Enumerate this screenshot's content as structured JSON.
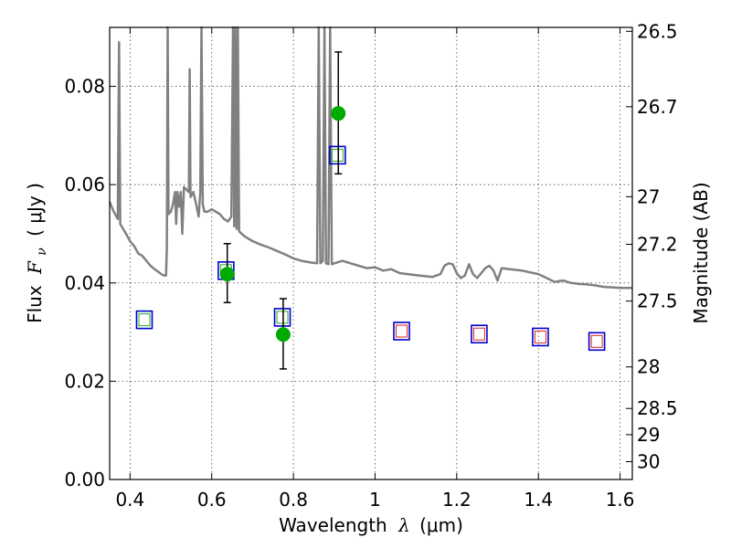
{
  "chart_data": {
    "type": "scatter",
    "xlabel_text": "Wavelength",
    "xlabel_symbol": "λ",
    "xlabel_unit": "(μm)",
    "ylabel_text": "Flux",
    "ylabel_symbol": "F",
    "ylabel_sub": "ν",
    "ylabel_unit": "( μJy )",
    "y2label": "Magnitude (AB)",
    "xlim": [
      0.35,
      1.63
    ],
    "ylim": [
      0.0,
      0.092
    ],
    "grid": true,
    "x_ticks": [
      {
        "value": 0.4,
        "label": "0.4"
      },
      {
        "value": 0.6,
        "label": "0.6"
      },
      {
        "value": 0.8,
        "label": "0.8"
      },
      {
        "value": 1.0,
        "label": "1"
      },
      {
        "value": 1.2,
        "label": "1.2"
      },
      {
        "value": 1.4,
        "label": "1.4"
      },
      {
        "value": 1.6,
        "label": "1.6"
      }
    ],
    "y_ticks": [
      {
        "value": 0.0,
        "label": "0.00"
      },
      {
        "value": 0.02,
        "label": "0.02"
      },
      {
        "value": 0.04,
        "label": "0.04"
      },
      {
        "value": 0.06,
        "label": "0.06"
      },
      {
        "value": 0.08,
        "label": "0.08"
      }
    ],
    "mag_ticks": [
      {
        "mag": 26.5,
        "label": "26.5"
      },
      {
        "mag": 26.7,
        "label": "26.7"
      },
      {
        "mag": 27.0,
        "label": "27"
      },
      {
        "mag": 27.2,
        "label": "27.2"
      },
      {
        "mag": 27.5,
        "label": "27.5"
      },
      {
        "mag": 28.0,
        "label": "28"
      },
      {
        "mag": 28.5,
        "label": "28.5"
      },
      {
        "mag": 29.0,
        "label": "29"
      },
      {
        "mag": 30.0,
        "label": "30"
      }
    ],
    "model_spectrum": {
      "color": "#808080",
      "points": [
        [
          0.35,
          0.0565
        ],
        [
          0.36,
          0.0545
        ],
        [
          0.37,
          0.053
        ],
        [
          0.373,
          0.089
        ],
        [
          0.376,
          0.052
        ],
        [
          0.39,
          0.05
        ],
        [
          0.4,
          0.0485
        ],
        [
          0.41,
          0.0475
        ],
        [
          0.42,
          0.046
        ],
        [
          0.43,
          0.0455
        ],
        [
          0.44,
          0.0445
        ],
        [
          0.45,
          0.0435
        ],
        [
          0.46,
          0.0428
        ],
        [
          0.47,
          0.0422
        ],
        [
          0.48,
          0.0416
        ],
        [
          0.488,
          0.0415
        ],
        [
          0.49,
          0.047
        ],
        [
          0.492,
          0.092
        ],
        [
          0.494,
          0.054
        ],
        [
          0.5,
          0.0545
        ],
        [
          0.505,
          0.056
        ],
        [
          0.51,
          0.0585
        ],
        [
          0.513,
          0.052
        ],
        [
          0.516,
          0.0585
        ],
        [
          0.52,
          0.0555
        ],
        [
          0.524,
          0.0585
        ],
        [
          0.528,
          0.05
        ],
        [
          0.532,
          0.0595
        ],
        [
          0.538,
          0.059
        ],
        [
          0.544,
          0.0585
        ],
        [
          0.546,
          0.0835
        ],
        [
          0.548,
          0.0575
        ],
        [
          0.555,
          0.0585
        ],
        [
          0.562,
          0.056
        ],
        [
          0.568,
          0.0535
        ],
        [
          0.572,
          0.0585
        ],
        [
          0.575,
          0.092
        ],
        [
          0.578,
          0.056
        ],
        [
          0.582,
          0.0545
        ],
        [
          0.59,
          0.0545
        ],
        [
          0.6,
          0.055
        ],
        [
          0.61,
          0.0545
        ],
        [
          0.62,
          0.054
        ],
        [
          0.63,
          0.053
        ],
        [
          0.64,
          0.0525
        ],
        [
          0.648,
          0.0535
        ],
        [
          0.652,
          0.092
        ],
        [
          0.655,
          0.0515
        ],
        [
          0.658,
          0.092
        ],
        [
          0.661,
          0.051
        ],
        [
          0.664,
          0.092
        ],
        [
          0.667,
          0.0505
        ],
        [
          0.68,
          0.0495
        ],
        [
          0.7,
          0.0485
        ],
        [
          0.72,
          0.0478
        ],
        [
          0.74,
          0.0472
        ],
        [
          0.76,
          0.0465
        ],
        [
          0.78,
          0.0458
        ],
        [
          0.8,
          0.045
        ],
        [
          0.82,
          0.0445
        ],
        [
          0.84,
          0.0442
        ],
        [
          0.858,
          0.044
        ],
        [
          0.862,
          0.092
        ],
        [
          0.866,
          0.044
        ],
        [
          0.872,
          0.0445
        ],
        [
          0.876,
          0.092
        ],
        [
          0.88,
          0.044
        ],
        [
          0.886,
          0.0438
        ],
        [
          0.89,
          0.092
        ],
        [
          0.894,
          0.0438
        ],
        [
          0.9,
          0.044
        ],
        [
          0.92,
          0.0445
        ],
        [
          0.94,
          0.044
        ],
        [
          0.96,
          0.0435
        ],
        [
          0.98,
          0.043
        ],
        [
          1.0,
          0.0432
        ],
        [
          1.02,
          0.0425
        ],
        [
          1.04,
          0.0428
        ],
        [
          1.06,
          0.042
        ],
        [
          1.08,
          0.0418
        ],
        [
          1.1,
          0.0416
        ],
        [
          1.12,
          0.0414
        ],
        [
          1.14,
          0.0412
        ],
        [
          1.16,
          0.0418
        ],
        [
          1.17,
          0.0435
        ],
        [
          1.18,
          0.044
        ],
        [
          1.19,
          0.0438
        ],
        [
          1.2,
          0.042
        ],
        [
          1.21,
          0.041
        ],
        [
          1.22,
          0.0415
        ],
        [
          1.23,
          0.0438
        ],
        [
          1.24,
          0.0418
        ],
        [
          1.25,
          0.041
        ],
        [
          1.26,
          0.042
        ],
        [
          1.27,
          0.043
        ],
        [
          1.28,
          0.0435
        ],
        [
          1.29,
          0.0425
        ],
        [
          1.3,
          0.0405
        ],
        [
          1.31,
          0.043
        ],
        [
          1.33,
          0.0428
        ],
        [
          1.36,
          0.0425
        ],
        [
          1.4,
          0.0418
        ],
        [
          1.42,
          0.041
        ],
        [
          1.44,
          0.0402
        ],
        [
          1.46,
          0.0405
        ],
        [
          1.48,
          0.04
        ],
        [
          1.5,
          0.0398
        ],
        [
          1.52,
          0.0397
        ],
        [
          1.54,
          0.0395
        ],
        [
          1.56,
          0.0392
        ],
        [
          1.58,
          0.0391
        ],
        [
          1.6,
          0.039
        ],
        [
          1.63,
          0.039
        ]
      ]
    },
    "band_fluxes": [
      {
        "x": 0.435,
        "y": 0.0325,
        "outer": "#0000cc",
        "inner": "#22aa22"
      },
      {
        "x": 0.635,
        "y": 0.0425,
        "outer": "#0000cc",
        "inner": "#22aa22"
      },
      {
        "x": 0.773,
        "y": 0.033,
        "outer": "#0000cc",
        "inner": "#22aa22"
      },
      {
        "x": 0.908,
        "y": 0.066,
        "outer": "#0000cc",
        "inner": "#22aa22"
      },
      {
        "x": 1.065,
        "y": 0.0302,
        "outer": "#0000cc",
        "inner": "#dd2222"
      },
      {
        "x": 1.255,
        "y": 0.0296,
        "outer": "#0000cc",
        "inner": "#dd2222"
      },
      {
        "x": 1.405,
        "y": 0.029,
        "outer": "#0000cc",
        "inner": "#dd2222"
      },
      {
        "x": 1.543,
        "y": 0.0281,
        "outer": "#0000cc",
        "inner": "#dd2222"
      }
    ],
    "observed": {
      "color": "#00aa00",
      "points": [
        {
          "x": 0.638,
          "y": 0.0418,
          "ylo": 0.036,
          "yhi": 0.048
        },
        {
          "x": 0.775,
          "y": 0.0295,
          "ylo": 0.0225,
          "yhi": 0.0368
        },
        {
          "x": 0.91,
          "y": 0.0745,
          "ylo": 0.0622,
          "yhi": 0.087
        }
      ]
    }
  }
}
